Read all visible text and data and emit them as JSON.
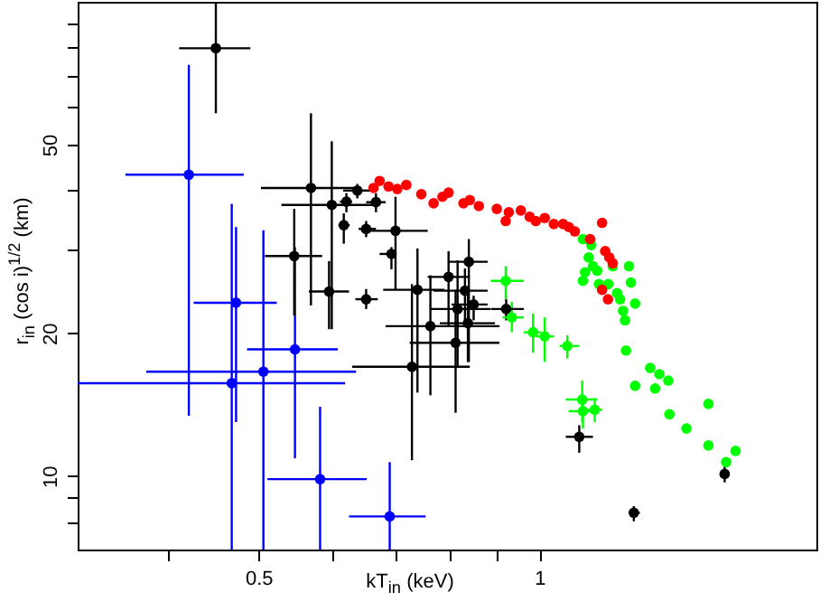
{
  "chart_data": {
    "type": "scatter",
    "xlabel": "kT$_{in}$ (keV)",
    "ylabel": "r$_{in}$ (cos i)$^{1/2}$ (km)",
    "log": "xy",
    "marker": "circle",
    "grid": false,
    "xlim": [
      0.32,
      1.98
    ],
    "ylim": [
      7,
      100
    ],
    "xticks": [
      {
        "value": 0.4,
        "label": null
      },
      0.5,
      {
        "value": 0.6,
        "label": null
      },
      {
        "value": 0.7,
        "label": null
      },
      {
        "value": 0.8,
        "label": null
      },
      {
        "value": 0.9,
        "label": null
      },
      1
    ],
    "yticks": [
      {
        "value": 8,
        "label": null
      },
      {
        "value": 9,
        "label": null
      },
      10,
      20,
      {
        "value": 30,
        "label": null
      },
      {
        "value": 40,
        "label": null
      },
      50,
      {
        "value": 60,
        "label": null
      },
      {
        "value": 70,
        "label": null
      },
      {
        "value": 80,
        "label": null
      },
      {
        "value": 90,
        "label": null
      }
    ],
    "series": [
      {
        "color": "#0000ff",
        "x": [
          0.421,
          0.473,
          0.468,
          0.506,
          0.547,
          0.582,
          0.691
        ],
        "values": [
          43.2,
          23.2,
          15.7,
          16.6,
          18.5,
          9.85,
          8.22
        ],
        "xerrors": [
          [
            0.36,
            0.482
          ],
          [
            0.426,
            0.523
          ],
          [
            0.32,
            0.619
          ],
          [
            0.379,
            0.636
          ],
          [
            0.486,
            0.608
          ],
          [
            0.511,
            0.653
          ],
          [
            0.625,
            0.755
          ]
        ],
        "errors": [
          [
            13.4,
            73.6
          ],
          [
            13.0,
            33.5
          ],
          [
            7,
            37.5
          ],
          [
            7,
            33.0
          ],
          [
            10.9,
            30.4
          ],
          [
            7,
            14.0
          ],
          [
            7,
            10.7
          ]
        ]
      },
      {
        "color": "#00ff00",
        "x": [
          0.92,
          0.934,
          0.984,
          1.013,
          1.071,
          1.111,
          1.113,
          1.146,
          1.113,
          1.129,
          1.136,
          1.119,
          1.113,
          1.141,
          1.158,
          1.153,
          1.185,
          1.211,
          1.22,
          1.198,
          1.247,
          1.253,
          1.229,
          1.235,
          1.266,
          1.238,
          1.314,
          1.266,
          1.33,
          1.344,
          1.374,
          1.378,
          1.437,
          1.517,
          1.517,
          1.585,
          1.622
        ],
        "values": [
          25.8,
          21.6,
          20.1,
          19.7,
          18.8,
          14.5,
          13.7,
          13.8,
          31.6,
          28.9,
          30.7,
          26.9,
          25.8,
          27.7,
          25.4,
          27.1,
          25.4,
          24.3,
          23.6,
          27.7,
          27.7,
          25.6,
          22.3,
          21.3,
          23.1,
          18.4,
          16.9,
          15.5,
          15.3,
          16.4,
          15.9,
          13.5,
          12.6,
          14.2,
          11.6,
          10.7,
          11.3
        ],
        "xerrors": [
          [
            0.887,
            0.962
          ],
          [
            0.913,
            0.962
          ],
          [
            0.962,
            1.003
          ],
          [
            0.991,
            1.036
          ],
          [
            1.051,
            1.103
          ],
          [
            1.067,
            1.153
          ],
          [
            1.075,
            1.158
          ],
          [
            1.124,
            1.167
          ],
          null,
          null,
          null,
          null,
          null,
          null,
          null,
          null,
          null,
          null,
          null,
          null,
          null,
          null,
          null,
          null,
          null,
          null,
          null,
          null,
          null,
          null,
          null,
          null,
          null,
          null,
          null,
          null,
          null
        ],
        "errors": [
          [
            23.6,
            27.7
          ],
          [
            20.1,
            23.3
          ],
          [
            18.2,
            22.0
          ],
          [
            17.4,
            21.6
          ],
          [
            17.7,
            19.8
          ],
          [
            13.0,
            15.9
          ],
          [
            12.6,
            14.6
          ],
          [
            13.0,
            14.6
          ],
          null,
          null,
          null,
          null,
          null,
          null,
          null,
          null,
          null,
          null,
          null,
          null,
          null,
          null,
          null,
          null,
          null,
          null,
          null,
          null,
          null,
          null,
          null,
          null,
          null,
          null,
          null,
          null,
          null
        ]
      },
      {
        "color": "#ff0000",
        "x": [
          0.664,
          0.674,
          0.689,
          0.704,
          0.72,
          0.747,
          0.77,
          0.787,
          0.799,
          0.829,
          0.842,
          0.861,
          0.9,
          0.92,
          0.927,
          0.955,
          0.976,
          0.991,
          1.013,
          1.036,
          1.06,
          1.075,
          1.091,
          1.133,
          1.167,
          1.176,
          1.188,
          1.198,
          1.167,
          1.184
        ],
        "values": [
          40.5,
          41.9,
          40.8,
          40.3,
          41.1,
          39.3,
          37.6,
          38.8,
          39.6,
          37.6,
          38.2,
          37.1,
          36.6,
          34.5,
          36.0,
          36.3,
          35.2,
          34.5,
          35.0,
          34.0,
          34.0,
          33.5,
          32.8,
          31.6,
          34.2,
          29.8,
          28.9,
          28.1,
          24.7,
          23.6
        ]
      },
      {
        "color": "#000000",
        "x": [
          0.45,
          0.569,
          0.599,
          0.621,
          0.638,
          0.617,
          0.668,
          0.652,
          0.701,
          0.694,
          0.546,
          0.595,
          0.652,
          0.74,
          0.799,
          0.84,
          0.832,
          0.85,
          0.817,
          0.838,
          0.764,
          0.813,
          0.73,
          0.921,
          1.103,
          1.262,
          1.579
        ],
        "values": [
          79.8,
          40.5,
          37.3,
          37.9,
          40.0,
          33.8,
          37.8,
          33.2,
          32.9,
          29.4,
          29.1,
          24.5,
          23.6,
          24.7,
          26.3,
          28.3,
          24.6,
          23.0,
          22.5,
          21.0,
          20.7,
          19.1,
          17.0,
          22.5,
          12.1,
          8.37,
          10.1
        ],
        "xerrors": [
          [
            0.411,
            0.49
          ],
          [
            0.503,
            0.64
          ],
          [
            0.529,
            0.674
          ],
          [
            0.611,
            0.63
          ],
          [
            0.616,
            0.659
          ],
          [
            0.609,
            0.626
          ],
          [
            0.652,
            0.684
          ],
          [
            0.64,
            0.668
          ],
          [
            0.644,
            0.759
          ],
          [
            0.674,
            0.699
          ],
          [
            0.508,
            0.585
          ],
          [
            0.566,
            0.625
          ],
          [
            0.635,
            0.671
          ],
          [
            0.68,
            0.791
          ],
          [
            0.759,
            0.842
          ],
          [
            0.799,
            0.88
          ],
          [
            0.77,
            0.88
          ],
          [
            0.805,
            0.88
          ],
          [
            0.764,
            0.886
          ],
          [
            0.782,
            0.896
          ],
          [
            0.684,
            0.906
          ],
          [
            0.726,
            0.906
          ],
          [
            0.63,
            0.842
          ],
          [
            0.887,
            0.962
          ],
          [
            1.067,
            1.141
          ],
          [
            1.247,
            1.281
          ],
          [
            1.565,
            1.593
          ]
        ],
        "errors": [
          [
            58.2,
            100
          ],
          [
            22.9,
            58.2
          ],
          [
            20.4,
            50.8
          ],
          [
            36.0,
            39.5
          ],
          [
            38.5,
            41.3
          ],
          [
            30.9,
            35.8
          ],
          [
            36.0,
            39.5
          ],
          [
            31.9,
            34.5
          ],
          [
            24.7,
            38.8
          ],
          [
            27.3,
            30.4
          ],
          [
            21.8,
            36.6
          ],
          [
            20.4,
            28.4
          ],
          [
            22.5,
            24.8
          ],
          [
            15.0,
            30.2
          ],
          [
            20.7,
            29.8
          ],
          [
            17.4,
            31.6
          ],
          [
            20.7,
            27.4
          ],
          [
            21.3,
            24.0
          ],
          [
            16.9,
            28.5
          ],
          [
            17.4,
            24.7
          ],
          [
            14.8,
            26.5
          ],
          [
            13.6,
            24.7
          ],
          [
            10.8,
            25.4
          ],
          [
            21.3,
            23.6
          ],
          [
            11.2,
            12.8
          ],
          [
            8.03,
            8.64
          ],
          [
            9.7,
            10.6
          ]
        ]
      }
    ]
  }
}
